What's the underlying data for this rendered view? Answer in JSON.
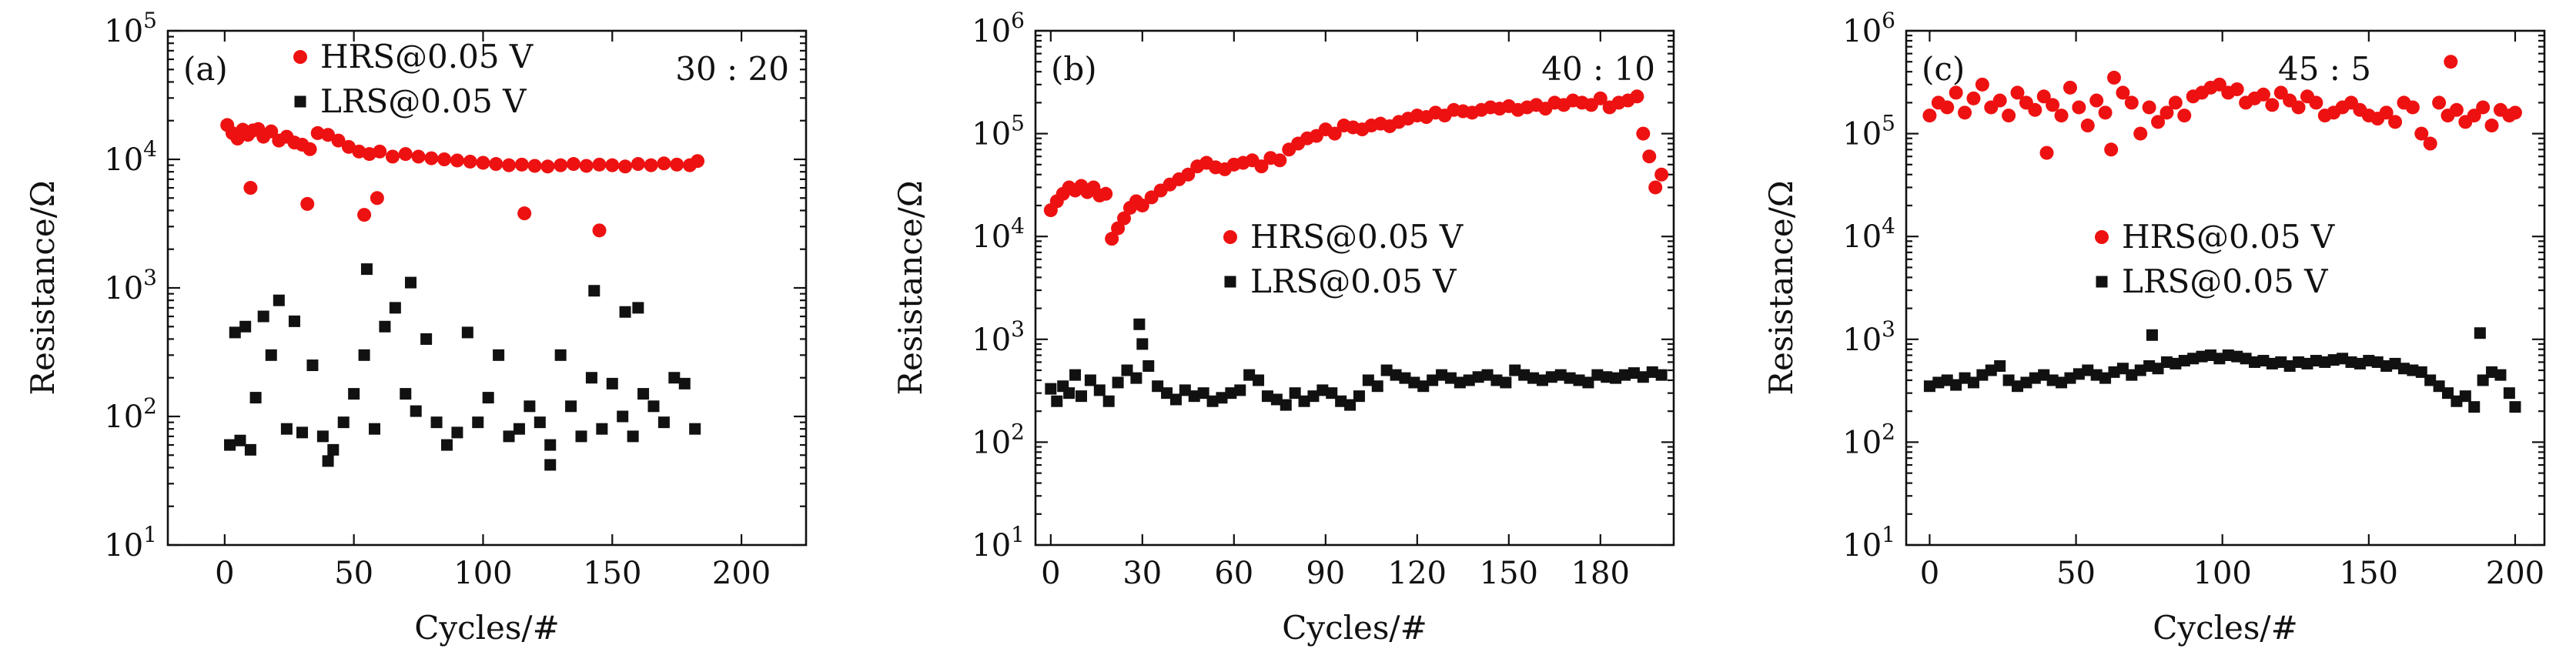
{
  "chart_data": [
    {
      "type": "scatter",
      "panel_label": "(a)",
      "ratio_label": "30 : 20",
      "xlabel": "Cycles/#",
      "ylabel": "Resistance/Ω",
      "yscale": "log",
      "xlim": [
        -22,
        225
      ],
      "ylim_exponents": [
        1,
        5
      ],
      "xticks": [
        "0",
        "50",
        "100",
        "150",
        "200"
      ],
      "xtick_values": [
        0,
        50,
        100,
        150,
        200
      ],
      "ytick_base": "10",
      "ytick_exponents": [
        "1",
        "2",
        "3",
        "4",
        "5"
      ],
      "legend_position": "top-center",
      "series": [
        {
          "name": "HRS@0.05 V",
          "marker": "circle",
          "color": "#ee1111",
          "x": [
            1,
            3,
            5,
            7,
            9,
            11,
            13,
            15,
            18,
            21,
            24,
            27,
            30,
            33,
            36,
            40,
            44,
            48,
            52,
            56,
            60,
            65,
            70,
            75,
            80,
            85,
            90,
            95,
            100,
            105,
            110,
            115,
            120,
            125,
            130,
            135,
            140,
            145,
            150,
            155,
            160,
            165,
            170,
            175,
            180,
            183,
            10,
            32,
            54,
            59,
            116,
            145
          ],
          "y": [
            18500,
            16000,
            14500,
            17000,
            15500,
            16800,
            17200,
            15000,
            16500,
            14000,
            15000,
            13500,
            13000,
            12000,
            16000,
            15500,
            14000,
            12500,
            11500,
            11000,
            11500,
            10500,
            11000,
            10500,
            10200,
            10000,
            9800,
            9600,
            9400,
            9200,
            9000,
            9100,
            8900,
            8800,
            9000,
            9200,
            8900,
            9100,
            9000,
            8800,
            9200,
            9000,
            9300,
            9100,
            9000,
            9700,
            6000,
            4500,
            3700,
            5000,
            3800,
            2800
          ]
        },
        {
          "name": "LRS@0.05 V",
          "marker": "square",
          "color": "#111111",
          "x": [
            2,
            4,
            6,
            8,
            10,
            12,
            15,
            18,
            21,
            24,
            27,
            30,
            34,
            38,
            42,
            46,
            50,
            54,
            58,
            62,
            66,
            70,
            74,
            78,
            82,
            86,
            90,
            94,
            98,
            102,
            106,
            110,
            114,
            118,
            122,
            126,
            130,
            134,
            138,
            142,
            146,
            150,
            154,
            158,
            162,
            166,
            170,
            174,
            178,
            182,
            55,
            72,
            143,
            155,
            160,
            40,
            126
          ],
          "y": [
            60,
            450,
            65,
            500,
            55,
            140,
            600,
            300,
            800,
            80,
            550,
            75,
            250,
            70,
            55,
            90,
            150,
            300,
            80,
            500,
            700,
            150,
            110,
            400,
            90,
            60,
            75,
            450,
            90,
            140,
            300,
            70,
            80,
            120,
            90,
            60,
            300,
            120,
            70,
            200,
            80,
            180,
            100,
            70,
            150,
            120,
            90,
            200,
            180,
            80,
            1400,
            1100,
            950,
            650,
            700,
            45,
            42
          ]
        }
      ]
    },
    {
      "type": "scatter",
      "panel_label": "(b)",
      "ratio_label": "40 : 10",
      "xlabel": "Cycles/#",
      "ylabel": "Resistance/Ω",
      "yscale": "log",
      "xlim": [
        -5,
        204
      ],
      "ylim_exponents": [
        1,
        6
      ],
      "xticks": [
        "0",
        "30",
        "60",
        "90",
        "120",
        "150",
        "180"
      ],
      "xtick_values": [
        0,
        30,
        60,
        90,
        120,
        150,
        180
      ],
      "ytick_base": "10",
      "ytick_exponents": [
        "1",
        "2",
        "3",
        "4",
        "5",
        "6"
      ],
      "legend_position": "center",
      "series": [
        {
          "name": "HRS@0.05 V",
          "marker": "circle",
          "color": "#ee1111",
          "x": [
            0,
            2,
            4,
            6,
            8,
            10,
            12,
            14,
            16,
            18,
            20,
            22,
            24,
            26,
            28,
            30,
            33,
            36,
            39,
            42,
            45,
            48,
            51,
            54,
            57,
            60,
            63,
            66,
            69,
            72,
            75,
            78,
            81,
            84,
            87,
            90,
            93,
            96,
            99,
            102,
            105,
            108,
            111,
            114,
            117,
            120,
            123,
            126,
            129,
            132,
            135,
            138,
            141,
            144,
            147,
            150,
            153,
            156,
            159,
            162,
            165,
            168,
            171,
            174,
            177,
            180,
            183,
            186,
            189,
            192,
            194,
            196,
            198,
            200
          ],
          "y": [
            18000,
            22000,
            26000,
            30000,
            28000,
            31000,
            27000,
            30000,
            25000,
            26000,
            9500,
            12000,
            15000,
            19000,
            22000,
            20000,
            24000,
            28000,
            32000,
            36000,
            40000,
            48000,
            52000,
            47000,
            45000,
            50000,
            52000,
            55000,
            48000,
            58000,
            55000,
            70000,
            80000,
            90000,
            95000,
            110000,
            100000,
            120000,
            115000,
            110000,
            120000,
            125000,
            118000,
            130000,
            140000,
            150000,
            145000,
            160000,
            150000,
            170000,
            165000,
            160000,
            170000,
            180000,
            175000,
            185000,
            170000,
            180000,
            190000,
            175000,
            200000,
            190000,
            210000,
            200000,
            190000,
            220000,
            180000,
            200000,
            210000,
            230000,
            100000,
            60000,
            30000,
            40000
          ]
        },
        {
          "name": "LRS@0.05 V",
          "marker": "square",
          "color": "#111111",
          "x": [
            0,
            2,
            4,
            6,
            8,
            10,
            13,
            16,
            19,
            22,
            25,
            28,
            30,
            32,
            35,
            38,
            41,
            44,
            47,
            50,
            53,
            56,
            59,
            62,
            65,
            68,
            71,
            74,
            77,
            80,
            83,
            86,
            89,
            92,
            95,
            98,
            101,
            104,
            107,
            110,
            113,
            116,
            119,
            122,
            125,
            128,
            131,
            134,
            137,
            140,
            143,
            146,
            149,
            152,
            155,
            158,
            161,
            164,
            167,
            170,
            173,
            176,
            179,
            182,
            185,
            188,
            191,
            194,
            197,
            200,
            29
          ],
          "y": [
            330,
            250,
            350,
            300,
            450,
            280,
            400,
            320,
            250,
            380,
            500,
            420,
            900,
            550,
            350,
            300,
            260,
            320,
            280,
            300,
            250,
            270,
            300,
            320,
            450,
            400,
            280,
            260,
            230,
            300,
            250,
            280,
            320,
            300,
            250,
            230,
            280,
            400,
            350,
            500,
            450,
            420,
            380,
            350,
            400,
            450,
            420,
            380,
            400,
            430,
            450,
            400,
            380,
            500,
            450,
            420,
            400,
            430,
            450,
            420,
            400,
            380,
            450,
            430,
            420,
            450,
            470,
            430,
            480,
            450,
            1400
          ]
        }
      ]
    },
    {
      "type": "scatter",
      "panel_label": "(c)",
      "ratio_label": "45 : 5",
      "xlabel": "Cycles/#",
      "ylabel": "Resistance/Ω",
      "yscale": "log",
      "xlim": [
        -8,
        210
      ],
      "ylim_exponents": [
        1,
        6
      ],
      "xticks": [
        "0",
        "50",
        "100",
        "150",
        "200"
      ],
      "xtick_values": [
        0,
        50,
        100,
        150,
        200
      ],
      "ytick_base": "10",
      "ytick_exponents": [
        "1",
        "2",
        "3",
        "4",
        "5",
        "6"
      ],
      "legend_position": "center",
      "series": [
        {
          "name": "HRS@0.05 V",
          "marker": "circle",
          "color": "#ee1111",
          "x": [
            0,
            3,
            6,
            9,
            12,
            15,
            18,
            21,
            24,
            27,
            30,
            33,
            36,
            39,
            42,
            45,
            48,
            51,
            54,
            57,
            60,
            63,
            66,
            69,
            72,
            75,
            78,
            81,
            84,
            87,
            90,
            93,
            96,
            99,
            102,
            105,
            108,
            111,
            114,
            117,
            120,
            123,
            126,
            129,
            132,
            135,
            138,
            141,
            144,
            147,
            150,
            153,
            156,
            159,
            162,
            165,
            168,
            171,
            174,
            177,
            180,
            183,
            186,
            189,
            192,
            195,
            198,
            200,
            178,
            40,
            62
          ],
          "y": [
            150000,
            200000,
            180000,
            250000,
            160000,
            220000,
            300000,
            180000,
            210000,
            150000,
            250000,
            200000,
            170000,
            230000,
            190000,
            150000,
            280000,
            180000,
            120000,
            210000,
            160000,
            350000,
            250000,
            200000,
            100000,
            180000,
            130000,
            160000,
            200000,
            150000,
            230000,
            250000,
            280000,
            300000,
            250000,
            270000,
            200000,
            220000,
            240000,
            190000,
            250000,
            210000,
            180000,
            230000,
            200000,
            150000,
            160000,
            180000,
            200000,
            170000,
            150000,
            140000,
            160000,
            130000,
            200000,
            180000,
            100000,
            80000,
            200000,
            150000,
            170000,
            130000,
            150000,
            180000,
            120000,
            170000,
            150000,
            160000,
            500000,
            65000,
            70000
          ]
        },
        {
          "name": "LRS@0.05 V",
          "marker": "square",
          "color": "#111111",
          "x": [
            0,
            3,
            6,
            9,
            12,
            15,
            18,
            21,
            24,
            27,
            30,
            33,
            36,
            39,
            42,
            45,
            48,
            51,
            54,
            57,
            60,
            63,
            66,
            69,
            72,
            75,
            78,
            81,
            84,
            87,
            90,
            93,
            96,
            99,
            102,
            105,
            108,
            111,
            114,
            117,
            120,
            123,
            126,
            129,
            132,
            135,
            138,
            141,
            144,
            147,
            150,
            153,
            156,
            159,
            162,
            165,
            168,
            171,
            174,
            177,
            180,
            183,
            186,
            189,
            192,
            195,
            198,
            200,
            76,
            188
          ],
          "y": [
            350,
            380,
            400,
            360,
            420,
            380,
            450,
            500,
            550,
            400,
            350,
            380,
            420,
            450,
            400,
            380,
            420,
            460,
            500,
            450,
            420,
            480,
            520,
            450,
            500,
            550,
            520,
            600,
            580,
            620,
            650,
            680,
            700,
            650,
            700,
            680,
            650,
            600,
            620,
            580,
            600,
            550,
            600,
            580,
            620,
            600,
            630,
            650,
            600,
            580,
            620,
            600,
            550,
            580,
            520,
            500,
            480,
            400,
            350,
            300,
            250,
            280,
            220,
            400,
            480,
            450,
            300,
            220,
            1100,
            1150
          ]
        }
      ]
    }
  ]
}
